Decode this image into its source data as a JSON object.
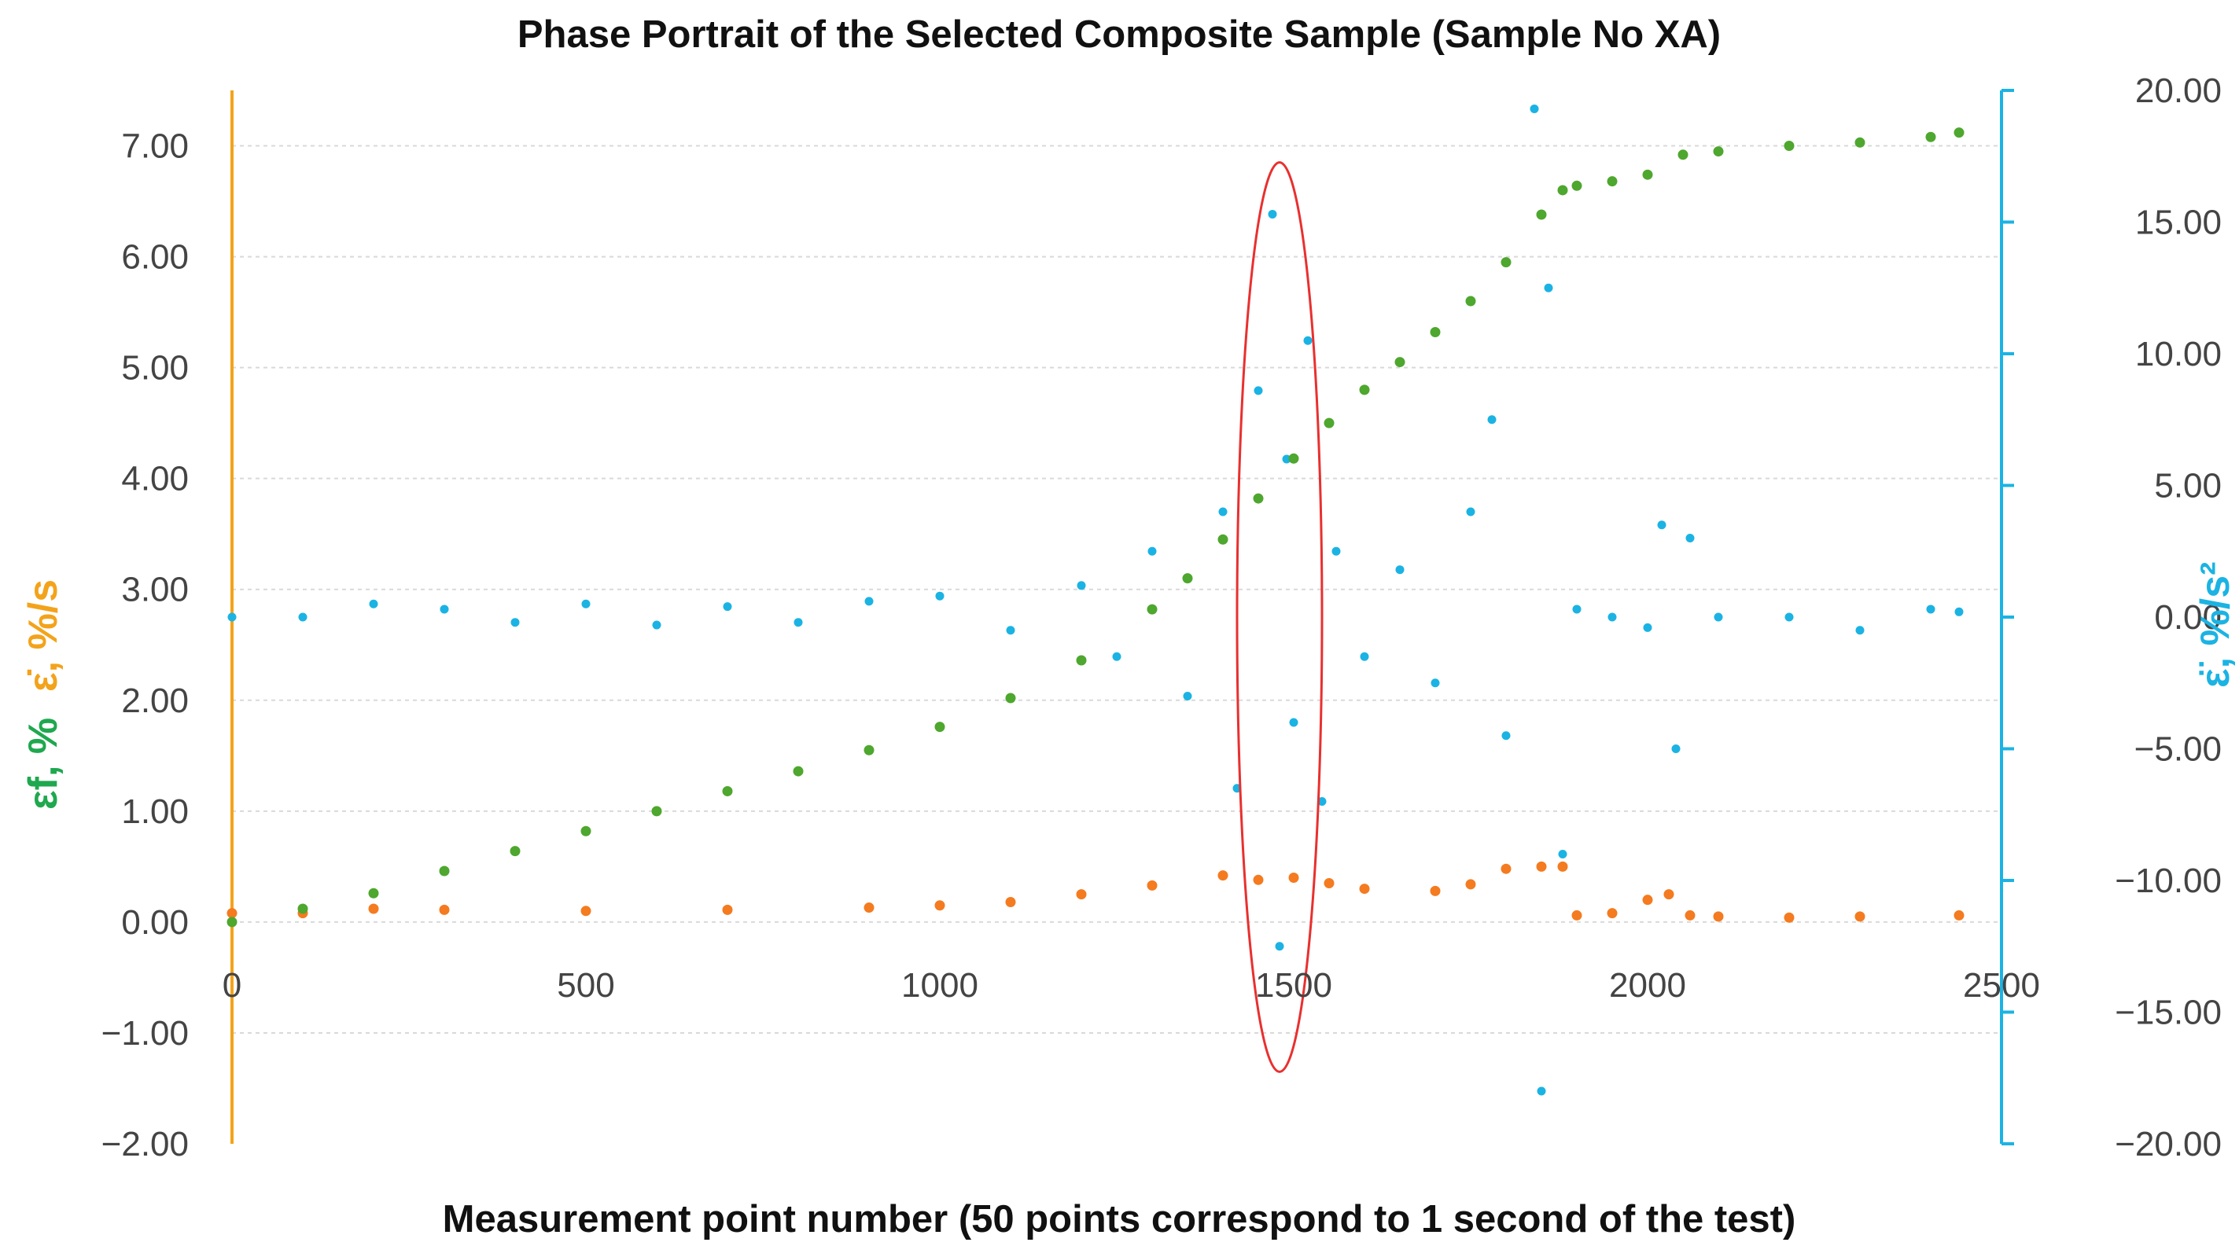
{
  "colors": {
    "strain": "#4EA72E",
    "strain_rate": "#F47B20",
    "strain_accel": "#1BB3E3",
    "left_axis_line": "#F3A31B",
    "right_axis_line": "#1BB3E3",
    "strain_label": "#1FA84F",
    "strain_rate_label": "#F3A31B",
    "highlight_ellipse": "#E8302F",
    "gridline": "#D9D9D9",
    "tick_text": "#444444"
  },
  "chart_data": {
    "type": "scatter",
    "title": "Phase Portrait of the Selected Composite Sample (Sample No XA)",
    "xlabel": "Measurement point number (50 points correspond to 1 second of the test)",
    "ylabel_left": {
      "strain": "εf, %",
      "strain_rate": "ε̇, %/s"
    },
    "ylabel_right": "ε̈, %/s²",
    "xlim": [
      0,
      2500
    ],
    "ylim_left": [
      -2,
      7.5
    ],
    "ylim_right": [
      -20,
      20
    ],
    "x_ticks": [
      "0",
      "500",
      "1000",
      "1500",
      "2000",
      "2500"
    ],
    "x_tick_values": [
      0,
      500,
      1000,
      1500,
      2000,
      2500
    ],
    "y_left_ticks": [
      "−2.00",
      "−1.00",
      "0.00",
      "1.00",
      "2.00",
      "3.00",
      "4.00",
      "5.00",
      "6.00",
      "7.00"
    ],
    "y_left_tick_values": [
      -2,
      -1,
      0,
      1,
      2,
      3,
      4,
      5,
      6,
      7
    ],
    "y_right_ticks": [
      "−20.00",
      "−15.00",
      "−10.00",
      "−5.00",
      "0.00",
      "5.00",
      "10.00",
      "15.00",
      "20.00"
    ],
    "y_right_tick_values": [
      -20,
      -15,
      -10,
      -5,
      0,
      5,
      10,
      15,
      20
    ],
    "grid": true,
    "series": [
      {
        "name": "εf, %",
        "axis": "left",
        "x": [
          0,
          100,
          200,
          300,
          400,
          500,
          600,
          700,
          800,
          900,
          1000,
          1100,
          1200,
          1300,
          1350,
          1400,
          1450,
          1500,
          1550,
          1600,
          1650,
          1700,
          1750,
          1800,
          1850,
          1880,
          1900,
          1950,
          2000,
          2050,
          2100,
          2200,
          2300,
          2400,
          2440
        ],
        "y": [
          0.0,
          0.12,
          0.26,
          0.46,
          0.64,
          0.82,
          1.0,
          1.18,
          1.36,
          1.55,
          1.76,
          2.02,
          2.36,
          2.82,
          3.1,
          3.45,
          3.82,
          4.18,
          4.5,
          4.8,
          5.05,
          5.32,
          5.6,
          5.95,
          6.38,
          6.6,
          6.64,
          6.68,
          6.74,
          6.92,
          6.95,
          7.0,
          7.03,
          7.08,
          7.12
        ]
      },
      {
        "name": "ε̇, %/s",
        "axis": "left",
        "x": [
          0,
          100,
          200,
          300,
          500,
          700,
          900,
          1000,
          1100,
          1200,
          1300,
          1400,
          1450,
          1500,
          1550,
          1600,
          1700,
          1750,
          1800,
          1850,
          1880,
          1900,
          1950,
          2000,
          2030,
          2060,
          2100,
          2200,
          2300,
          2440
        ],
        "y": [
          0.08,
          0.08,
          0.12,
          0.11,
          0.1,
          0.11,
          0.13,
          0.15,
          0.18,
          0.25,
          0.33,
          0.42,
          0.38,
          0.4,
          0.35,
          0.3,
          0.28,
          0.34,
          0.48,
          0.5,
          0.5,
          0.06,
          0.08,
          0.2,
          0.25,
          0.06,
          0.05,
          0.04,
          0.05,
          0.06
        ]
      },
      {
        "name": "ε̈, %/s²",
        "axis": "right",
        "x": [
          0,
          100,
          200,
          300,
          400,
          500,
          600,
          700,
          800,
          900,
          1000,
          1100,
          1200,
          1250,
          1300,
          1350,
          1400,
          1420,
          1450,
          1470,
          1480,
          1490,
          1500,
          1520,
          1540,
          1560,
          1600,
          1650,
          1700,
          1750,
          1780,
          1800,
          1840,
          1850,
          1860,
          1880,
          1900,
          1950,
          2000,
          2020,
          2040,
          2060,
          2100,
          2200,
          2300,
          2400,
          2440
        ],
        "y": [
          0.0,
          0.0,
          0.5,
          0.3,
          -0.2,
          0.5,
          -0.3,
          0.4,
          -0.2,
          0.6,
          0.8,
          -0.5,
          1.2,
          -1.5,
          2.5,
          -3.0,
          4.0,
          -6.5,
          8.6,
          15.3,
          -12.5,
          6.0,
          -4.0,
          10.5,
          -7.0,
          2.5,
          -1.5,
          1.8,
          -2.5,
          4.0,
          7.5,
          -4.5,
          19.3,
          -18.0,
          12.5,
          -9.0,
          0.3,
          0.0,
          -0.4,
          3.5,
          -5.0,
          3.0,
          0.0,
          0.0,
          -0.5,
          0.3,
          0.2
        ]
      }
    ],
    "annotation": {
      "type": "ellipse",
      "x_center": 1480,
      "y_center_left": 2.75,
      "x_half_width": 60,
      "y_half_height_left": 4.1
    }
  }
}
